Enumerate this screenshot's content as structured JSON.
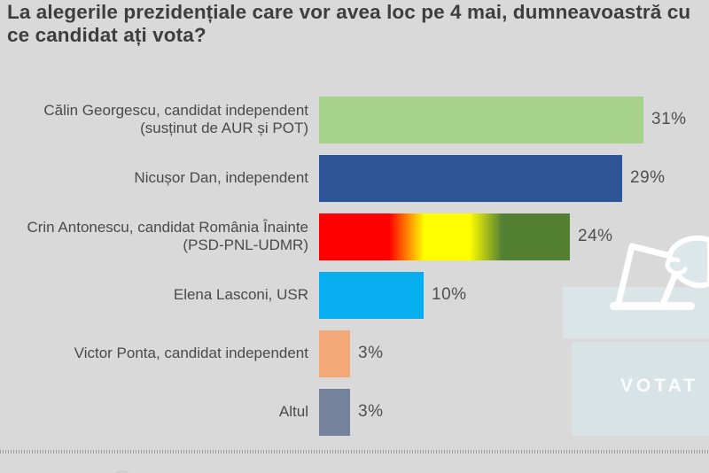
{
  "title": "La alegerile prezidențiale care vor avea loc pe 4 mai, dumneavoastră cu ce candidat ați vota?",
  "chart_data": {
    "type": "bar",
    "orientation": "horizontal",
    "title": "La alegerile prezidențiale care vor avea loc pe 4 mai, dumneavoastră cu ce candidat ați vota?",
    "categories": [
      "Călin Georgescu, candidat independent (susținut de AUR și POT)",
      "Nicușor Dan, independent",
      "Crin Antonescu, candidat România Înainte (PSD-PNL-UDMR)",
      "Elena Lasconi, USR",
      "Victor Ponta, candidat independent",
      "Altul"
    ],
    "values": [
      31,
      29,
      24,
      10,
      3,
      3
    ],
    "value_labels": [
      "31%",
      "29%",
      "24%",
      "10%",
      "3%",
      "3%"
    ],
    "bar_colors": [
      "#a6d28c",
      "#2e5597",
      "red-yellow-green gradient (PSD-PNL-UDMR)",
      "#06aeef",
      "#f5a877",
      "#74829c"
    ],
    "xlim": [
      0,
      35
    ],
    "grid": false,
    "legend": false
  },
  "rows": [
    {
      "label_line1": "Călin Georgescu, candidat independent",
      "label_line2": "(susținut de AUR și POT)",
      "value": 31,
      "pct": "31%",
      "color_css": "#a6d28c"
    },
    {
      "label_line1": "Nicușor Dan, independent",
      "label_line2": "",
      "value": 29,
      "pct": "29%",
      "color_css": "#2e5597"
    },
    {
      "label_line1": "Crin Antonescu, candidat România Înainte",
      "label_line2": "(PSD-PNL-UDMR)",
      "value": 24,
      "pct": "24%",
      "color_css": "linear-gradient(90deg,#fe0000 0%,#fe0000 28%,#ffff00 42%,#ffff00 60%,#538033 73%,#538033 100%)"
    },
    {
      "label_line1": "Elena Lasconi, USR",
      "label_line2": "",
      "value": 10,
      "pct": "10%",
      "color_css": "#06aeef"
    },
    {
      "label_line1": "Victor Ponta, candidat independent",
      "label_line2": "",
      "value": 3,
      "pct": "3%",
      "color_css": "#f5a877"
    },
    {
      "label_line1": "Altul",
      "label_line2": "",
      "value": 3,
      "pct": "3%",
      "color_css": "#74829c"
    }
  ],
  "ballot_box": {
    "label": "VOTAT",
    "lid_color": "#dbe5e8",
    "body_color": "#d8e3e6",
    "outline_color": "#ffffff"
  },
  "background_color": "#d9d9d9"
}
